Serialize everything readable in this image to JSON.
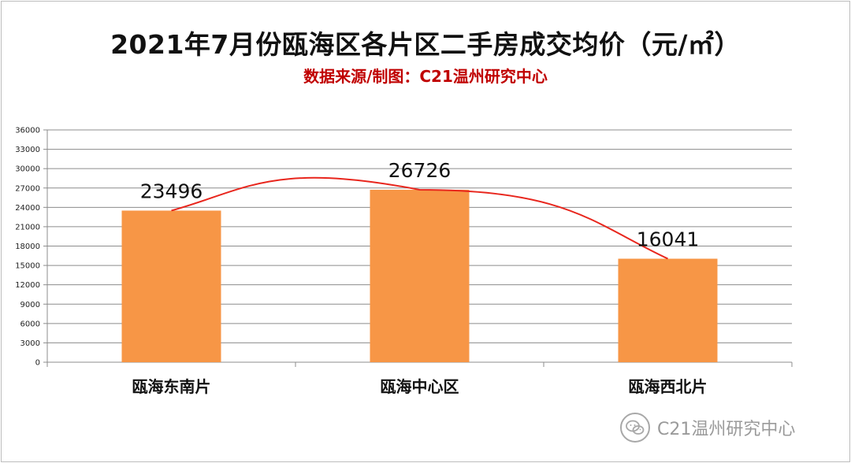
{
  "title": "2021年7月份瓯海区各片区二手房成交均价（元/㎡）",
  "subtitle": "数据来源/制图：C21温州研究中心",
  "watermark": "C21温州研究中心",
  "colors": {
    "bar": "#F79646",
    "trend": "#E8261D",
    "subtitle": "#C00000",
    "grid": "#8C8C8C"
  },
  "chart_data": {
    "type": "bar",
    "categories": [
      "瓯海东南片",
      "瓯海中心区",
      "瓯海西北片"
    ],
    "values": [
      23496,
      26726,
      16041
    ],
    "data_labels": [
      "23496",
      "26726",
      "16041"
    ],
    "ylim": [
      0,
      36000
    ],
    "yticks": [
      0,
      3000,
      6000,
      9000,
      12000,
      15000,
      18000,
      21000,
      24000,
      27000,
      30000,
      33000,
      36000
    ],
    "grid": true,
    "trendline": true
  }
}
